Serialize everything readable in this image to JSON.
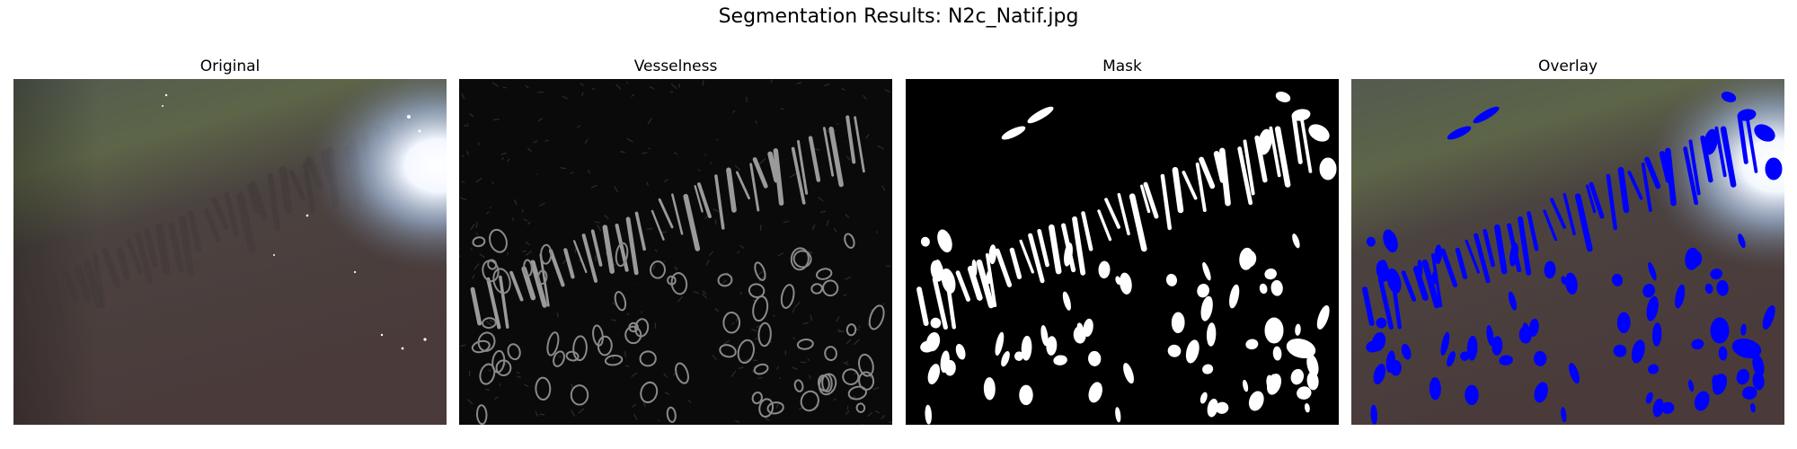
{
  "figure": {
    "title": "Segmentation Results: N2c_Natif.jpg"
  },
  "panels": [
    {
      "title": "Original"
    },
    {
      "title": "Vesselness"
    },
    {
      "title": "Mask"
    },
    {
      "title": "Overlay"
    }
  ],
  "colors": {
    "background": "#ffffff",
    "original_base": "#4a3f3c",
    "original_green_band": "#5d6548",
    "glare": "#f4f8ff",
    "vesselness_background": "#0a0a0a",
    "vessel_stroke": "#9a9a9a",
    "mask_background": "#000000",
    "mask_vessels": "#ffffff",
    "overlay_vessels": "#0000ff"
  }
}
